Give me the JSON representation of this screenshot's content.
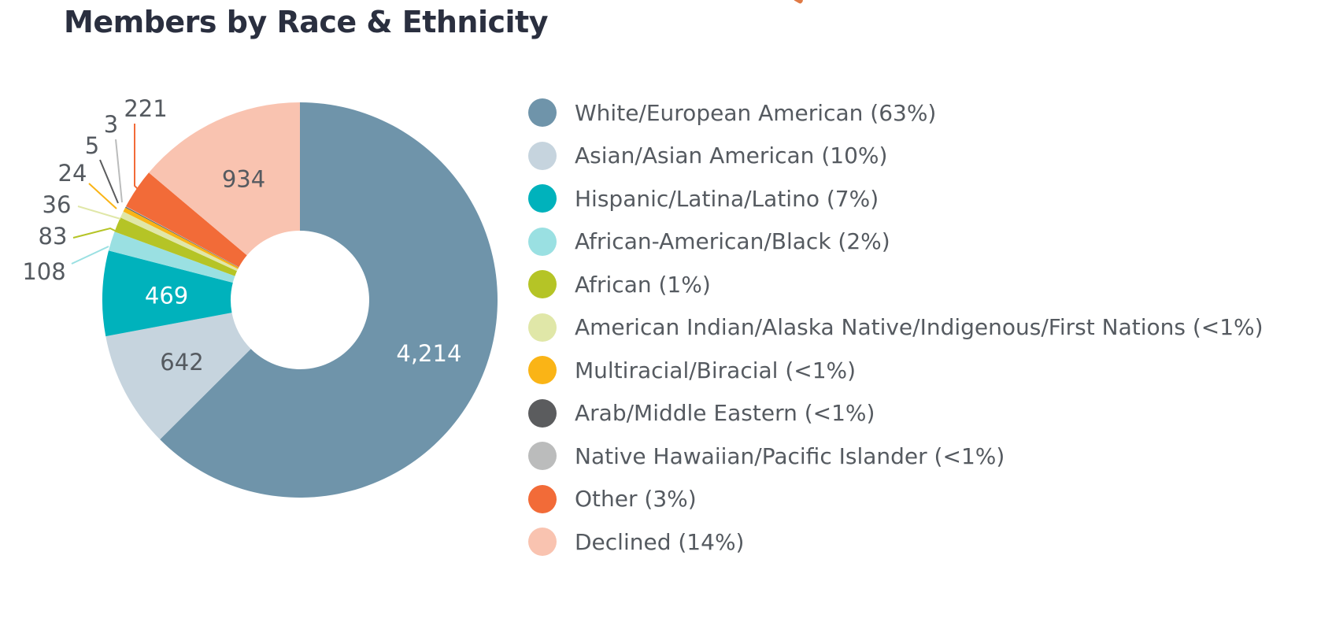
{
  "chart_data": {
    "type": "pie",
    "style": "donut",
    "title": "Members by Race & Ethnicity",
    "legend_position": "right",
    "series": [
      {
        "name": "White/European American (63%)",
        "value": 4214,
        "label": "4,214",
        "color": "#6f94aa",
        "label_color": "#ffffff",
        "label_inside": true
      },
      {
        "name": "Asian/Asian American (10%)",
        "value": 642,
        "label": "642",
        "color": "#c6d4de",
        "label_color": "#555a60",
        "label_inside": true
      },
      {
        "name": "Hispanic/Latina/Latino (7%)",
        "value": 469,
        "label": "469",
        "color": "#00b2bc",
        "label_color": "#ffffff",
        "label_inside": true
      },
      {
        "name": "African-American/Black (2%)",
        "value": 108,
        "label": "108",
        "color": "#9ae0e2",
        "label_color": "#555a60",
        "label_inside": false
      },
      {
        "name": "African (1%)",
        "value": 83,
        "label": "83",
        "color": "#b5c426",
        "label_color": "#555a60",
        "label_inside": false
      },
      {
        "name": "American Indian/Alaska Native/Indigenous/First Nations (<1%)",
        "value": 36,
        "label": "36",
        "color": "#e0e7a8",
        "label_color": "#555a60",
        "label_inside": false
      },
      {
        "name": "Multiracial/Biracial (<1%)",
        "value": 24,
        "label": "24",
        "color": "#fab416",
        "label_color": "#555a60",
        "label_inside": false
      },
      {
        "name": "Arab/Middle Eastern (<1%)",
        "value": 5,
        "label": "5",
        "color": "#5b5c5e",
        "label_color": "#555a60",
        "label_inside": false
      },
      {
        "name": "Native Hawaiian/Pacific Islander (<1%)",
        "value": 3,
        "label": "3",
        "color": "#bbbcbc",
        "label_color": "#555a60",
        "label_inside": false
      },
      {
        "name": "Other (3%)",
        "value": 221,
        "label": "221",
        "color": "#f26b38",
        "label_color": "#555a60",
        "label_inside": false
      },
      {
        "name": "Declined (14%)",
        "value": 934,
        "label": "934",
        "color": "#f9c3b0",
        "label_color": "#555a60",
        "label_inside": true
      }
    ]
  }
}
